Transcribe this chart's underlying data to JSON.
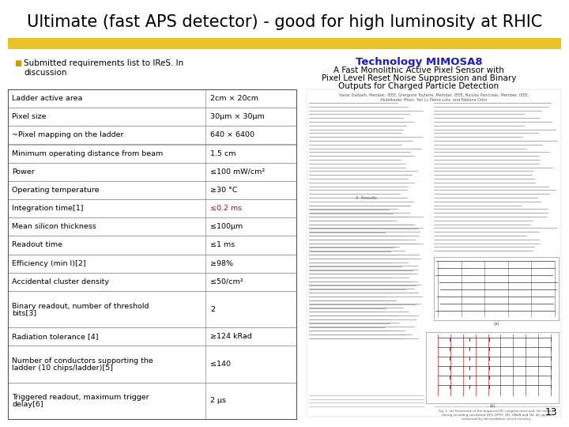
{
  "title": "Ultimate (fast APS detector) - good for high luminosity at RHIC",
  "bullet_text_line1": "Submitted requirements list to IReS. In",
  "bullet_text_line2": "discussion",
  "tech_title": "Technology MIMOSA8",
  "tech_subtitle_line1": "A Fast Monolithic Active Pixel Sensor with",
  "tech_subtitle_line2": "Pixel Level Reset Noise Suppression and Binary",
  "tech_subtitle_line3": "Outputs for Charged Particle Detection",
  "authors_line1": "Vanar Dadpeh, Member, IEEE, Grergoire Toyterie, Member, IEEE, Nicolas Pancrises, Member, IEEE,",
  "authors_line2": "Abdelkader Htani, Yan Li, Pierre Lutz, and Fabiana Ortin",
  "page_number": "13",
  "table_rows": [
    [
      "Ladder active area",
      "2cm × 20cm",
      false
    ],
    [
      "Pixel size",
      "30μm × 30μm",
      false
    ],
    [
      "~Pixel mapping on the ladder",
      "640 × 6400",
      false
    ],
    [
      "Minimum operating distance from beam",
      "1.5 cm",
      false
    ],
    [
      "Power",
      "≤100 mW/cm²",
      false
    ],
    [
      "Operating temperature",
      "≥30 °C",
      false
    ],
    [
      "Integration time[1]",
      "≤0.2 ms",
      true
    ],
    [
      "Mean silicon thickness",
      "≤100μm",
      false
    ],
    [
      "Readout time",
      "≤1 ms",
      false
    ],
    [
      "Efficiency (min I)[2]",
      "≥98%",
      false
    ],
    [
      "Accidental cluster density",
      "≤50/cm²",
      false
    ],
    [
      "Binary readout, number of threshold\nbits[3]",
      "2",
      false
    ],
    [
      "Radiation tolerance [4]",
      "≥124 kRad",
      false
    ],
    [
      "Number of conductors supporting the\nladder (10 chips/ladder)[5]",
      "≤140",
      false
    ],
    [
      "Triggered readout, maximum trigger\ndelay[6]",
      "2 μs",
      false
    ]
  ],
  "highlight_color": "#cc0000",
  "bg_color": "#ffffff",
  "yellow_bar_color": "#e8b800",
  "bullet_color": "#c8a000"
}
